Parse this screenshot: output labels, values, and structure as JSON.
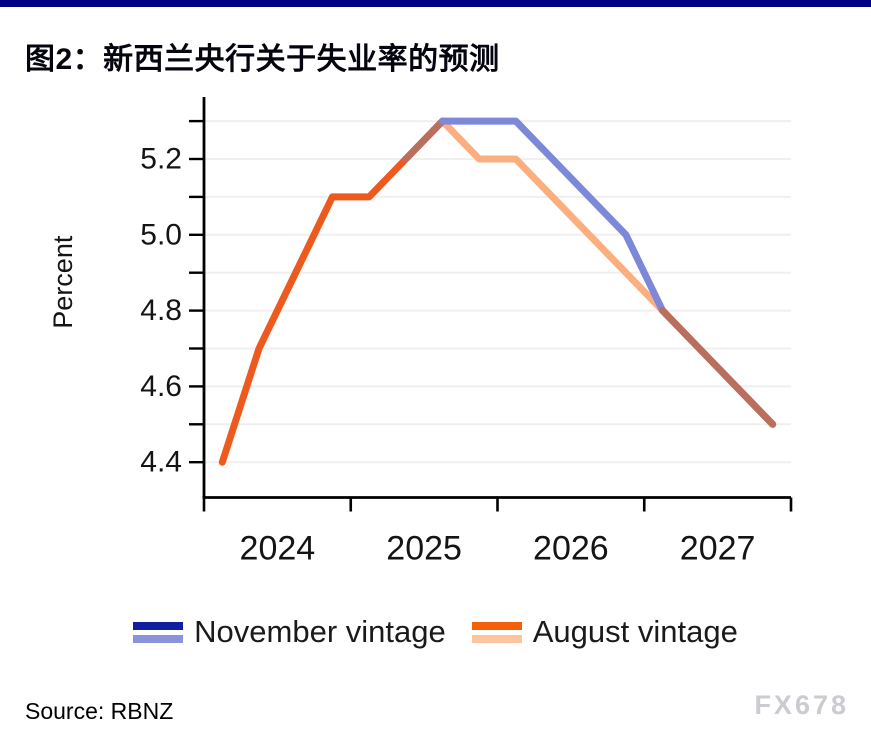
{
  "page": {
    "title": "图2：新西兰央行关于失业率的预测",
    "source": "Source: RBNZ",
    "watermark": "FX678",
    "accent_bar_color": "#000087"
  },
  "legend": {
    "position": "bottom",
    "items": [
      {
        "label": "November vintage",
        "swatch_top": "#111F9E",
        "swatch_bottom": "#8A93DB"
      },
      {
        "label": "August vintage",
        "swatch_top": "#F2600C",
        "swatch_bottom": "#FBC49C"
      }
    ]
  },
  "chart_data": {
    "type": "line",
    "title": "图2：新西兰央行关于失业率的预测",
    "xlabel": "",
    "ylabel": "Percent",
    "grid": "horizontal-light",
    "legend_position": "bottom",
    "x_years": [
      "2024",
      "2025",
      "2026",
      "2027"
    ],
    "quarters": [
      "2024Q1",
      "2024Q2",
      "2024Q3",
      "2024Q4",
      "2025Q1",
      "2025Q2",
      "2025Q3",
      "2025Q4",
      "2026Q1",
      "2026Q2",
      "2026Q3",
      "2026Q4",
      "2027Q1",
      "2027Q2",
      "2027Q3",
      "2027Q4"
    ],
    "ylim": [
      4.33,
      5.42
    ],
    "y_label_ticks": [
      "4.4",
      "4.6",
      "4.8",
      "5.0",
      "5.2"
    ],
    "y_minor_tick_start": 4.4,
    "y_minor_tick_step": 0.1,
    "y_minor_tick_count": 10,
    "axis_color": "#000000",
    "gridline_color": "#efefef",
    "series": [
      {
        "name": "August vintage",
        "start_index": 0,
        "values": [
          4.4,
          4.7,
          4.9,
          5.1,
          5.1,
          5.2,
          5.3,
          5.2,
          5.2,
          5.1,
          5.0,
          4.9,
          4.8,
          4.7,
          4.6,
          4.5
        ],
        "color_runs": [
          {
            "from": 0,
            "to": 5,
            "color": "#EE5A1E"
          },
          {
            "from": 5,
            "to": 6,
            "color": "#B96E5E"
          },
          {
            "from": 6,
            "to": 12,
            "color": "#FBAF7F"
          },
          {
            "from": 12,
            "to": 15,
            "color": "#B96E5E"
          }
        ]
      },
      {
        "name": "November vintage",
        "start_index": 5,
        "values": [
          5.2,
          5.3,
          5.3,
          5.3,
          5.2,
          5.1,
          5.0,
          4.8,
          4.7,
          4.6,
          4.5
        ],
        "color_runs": [
          {
            "from": 5,
            "to": 6,
            "color": "#B96E5E"
          },
          {
            "from": 6,
            "to": 12,
            "color": "#7E88D8"
          },
          {
            "from": 12,
            "to": 15,
            "color": "#B96E5E"
          }
        ]
      }
    ]
  }
}
